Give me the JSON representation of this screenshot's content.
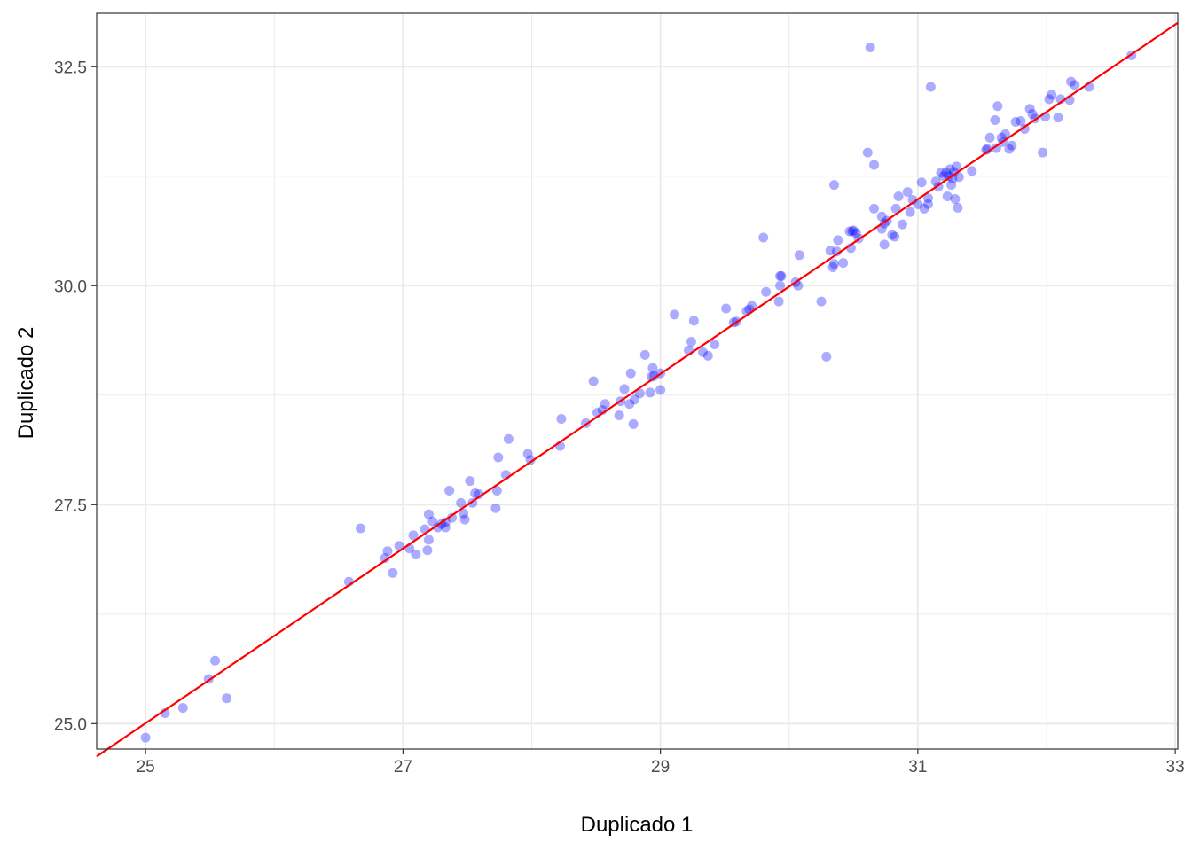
{
  "chart_data": {
    "type": "scatter",
    "title": "",
    "xlabel": "Duplicado 1",
    "ylabel": "Duplicado 2",
    "xlim": [
      24.62,
      33.02
    ],
    "ylim": [
      24.71,
      33.11
    ],
    "x_ticks": [
      25,
      27,
      29,
      31,
      33
    ],
    "x_tick_labels": [
      "25",
      "27",
      "29",
      "31",
      "33"
    ],
    "y_ticks": [
      25.0,
      27.5,
      30.0,
      32.5
    ],
    "y_tick_labels": [
      "25.0",
      "27.5",
      "30.0",
      "32.5"
    ],
    "grid": true,
    "point_color": "#0000ff",
    "point_opacity": 0.33,
    "fit_line": {
      "color": "#ff0000",
      "intercept": 0.08,
      "slope": 0.997
    },
    "points": [
      [
        25.0,
        24.84
      ],
      [
        25.15,
        25.12
      ],
      [
        25.29,
        25.18
      ],
      [
        25.49,
        25.51
      ],
      [
        25.54,
        25.72
      ],
      [
        25.63,
        25.29
      ],
      [
        26.58,
        26.62
      ],
      [
        26.67,
        27.23
      ],
      [
        26.86,
        26.89
      ],
      [
        26.88,
        26.97
      ],
      [
        26.92,
        26.72
      ],
      [
        26.97,
        27.03
      ],
      [
        27.05,
        27.0
      ],
      [
        27.08,
        27.15
      ],
      [
        27.1,
        26.93
      ],
      [
        27.17,
        27.22
      ],
      [
        27.19,
        26.98
      ],
      [
        27.2,
        27.1
      ],
      [
        27.2,
        27.39
      ],
      [
        27.23,
        27.31
      ],
      [
        27.27,
        27.24
      ],
      [
        27.3,
        27.28
      ],
      [
        27.33,
        27.24
      ],
      [
        27.33,
        27.3
      ],
      [
        27.36,
        27.66
      ],
      [
        27.38,
        27.35
      ],
      [
        27.45,
        27.52
      ],
      [
        27.47,
        27.4
      ],
      [
        27.48,
        27.33
      ],
      [
        27.52,
        27.77
      ],
      [
        27.54,
        27.52
      ],
      [
        27.56,
        27.63
      ],
      [
        27.59,
        27.62
      ],
      [
        27.72,
        27.46
      ],
      [
        27.73,
        27.66
      ],
      [
        27.74,
        28.04
      ],
      [
        27.8,
        27.84
      ],
      [
        27.82,
        28.25
      ],
      [
        27.97,
        28.08
      ],
      [
        27.99,
        28.01
      ],
      [
        28.22,
        28.17
      ],
      [
        28.23,
        28.48
      ],
      [
        28.42,
        28.43
      ],
      [
        28.48,
        28.91
      ],
      [
        28.51,
        28.55
      ],
      [
        28.55,
        28.58
      ],
      [
        28.57,
        28.65
      ],
      [
        28.68,
        28.52
      ],
      [
        28.69,
        28.68
      ],
      [
        28.72,
        28.82
      ],
      [
        28.76,
        28.65
      ],
      [
        28.77,
        29.0
      ],
      [
        28.79,
        28.42
      ],
      [
        28.8,
        28.7
      ],
      [
        28.84,
        28.77
      ],
      [
        28.88,
        29.21
      ],
      [
        28.92,
        28.78
      ],
      [
        28.93,
        28.96
      ],
      [
        28.94,
        29.06
      ],
      [
        28.95,
        28.97
      ],
      [
        29.0,
        28.81
      ],
      [
        29.0,
        29.0
      ],
      [
        29.11,
        29.67
      ],
      [
        29.22,
        29.26
      ],
      [
        29.24,
        29.36
      ],
      [
        29.26,
        29.6
      ],
      [
        29.33,
        29.24
      ],
      [
        29.37,
        29.2
      ],
      [
        29.42,
        29.33
      ],
      [
        29.51,
        29.74
      ],
      [
        29.57,
        29.58
      ],
      [
        29.59,
        29.59
      ],
      [
        29.67,
        29.71
      ],
      [
        29.69,
        29.73
      ],
      [
        29.71,
        29.77
      ],
      [
        29.8,
        30.55
      ],
      [
        29.82,
        29.93
      ],
      [
        29.92,
        29.82
      ],
      [
        29.93,
        30.0
      ],
      [
        29.93,
        30.11
      ],
      [
        29.94,
        30.11
      ],
      [
        30.05,
        30.04
      ],
      [
        30.07,
        30.0
      ],
      [
        30.08,
        30.35
      ],
      [
        30.25,
        29.82
      ],
      [
        30.29,
        29.19
      ],
      [
        30.32,
        30.4
      ],
      [
        30.34,
        30.21
      ],
      [
        30.35,
        31.15
      ],
      [
        30.35,
        30.25
      ],
      [
        30.37,
        30.39
      ],
      [
        30.38,
        30.52
      ],
      [
        30.42,
        30.26
      ],
      [
        30.47,
        30.62
      ],
      [
        30.48,
        30.43
      ],
      [
        30.49,
        30.62
      ],
      [
        30.5,
        30.63
      ],
      [
        30.52,
        30.6
      ],
      [
        30.54,
        30.54
      ],
      [
        30.61,
        31.52
      ],
      [
        30.63,
        32.72
      ],
      [
        30.66,
        30.88
      ],
      [
        30.66,
        31.38
      ],
      [
        30.72,
        30.79
      ],
      [
        30.72,
        30.65
      ],
      [
        30.74,
        30.47
      ],
      [
        30.74,
        30.71
      ],
      [
        30.76,
        30.74
      ],
      [
        30.8,
        30.58
      ],
      [
        30.82,
        30.56
      ],
      [
        30.83,
        30.88
      ],
      [
        30.85,
        31.02
      ],
      [
        30.88,
        30.7
      ],
      [
        30.92,
        31.07
      ],
      [
        30.94,
        30.84
      ],
      [
        30.96,
        30.98
      ],
      [
        31.0,
        30.93
      ],
      [
        31.03,
        31.18
      ],
      [
        31.05,
        30.88
      ],
      [
        31.08,
        30.93
      ],
      [
        31.08,
        31.0
      ],
      [
        31.1,
        32.27
      ],
      [
        31.14,
        31.19
      ],
      [
        31.16,
        31.13
      ],
      [
        31.18,
        31.29
      ],
      [
        31.2,
        31.25
      ],
      [
        31.22,
        31.29
      ],
      [
        31.23,
        31.02
      ],
      [
        31.24,
        31.25
      ],
      [
        31.25,
        31.33
      ],
      [
        31.26,
        31.15
      ],
      [
        31.27,
        31.22
      ],
      [
        31.28,
        31.3
      ],
      [
        31.29,
        30.99
      ],
      [
        31.3,
        31.36
      ],
      [
        31.31,
        30.89
      ],
      [
        31.32,
        31.24
      ],
      [
        31.42,
        31.31
      ],
      [
        31.53,
        31.55
      ],
      [
        31.54,
        31.56
      ],
      [
        31.56,
        31.69
      ],
      [
        31.6,
        31.89
      ],
      [
        31.61,
        31.57
      ],
      [
        31.62,
        32.05
      ],
      [
        31.65,
        31.69
      ],
      [
        31.66,
        31.64
      ],
      [
        31.68,
        31.73
      ],
      [
        31.71,
        31.56
      ],
      [
        31.73,
        31.6
      ],
      [
        31.76,
        31.87
      ],
      [
        31.8,
        31.88
      ],
      [
        31.83,
        31.79
      ],
      [
        31.87,
        32.02
      ],
      [
        31.89,
        31.96
      ],
      [
        31.91,
        31.91
      ],
      [
        31.97,
        31.52
      ],
      [
        31.99,
        31.93
      ],
      [
        32.02,
        32.13
      ],
      [
        32.04,
        32.18
      ],
      [
        32.09,
        31.92
      ],
      [
        32.11,
        32.13
      ],
      [
        32.18,
        32.12
      ],
      [
        32.19,
        32.33
      ],
      [
        32.22,
        32.29
      ],
      [
        32.33,
        32.27
      ],
      [
        32.66,
        32.63
      ]
    ]
  }
}
